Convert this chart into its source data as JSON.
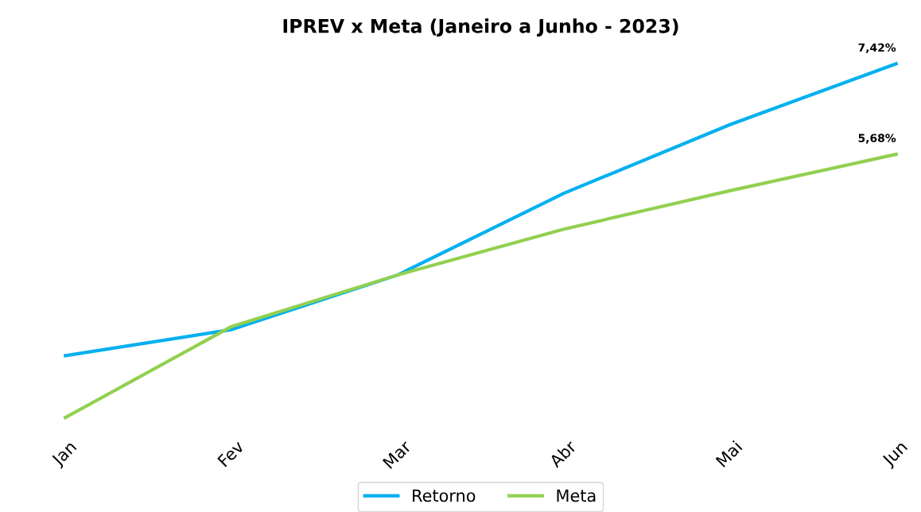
{
  "chart_data": {
    "type": "line",
    "title": "IPREV x Meta (Janeiro a Junho - 2023)",
    "categories": [
      "Jan",
      "Fev",
      "Mar",
      "Abr",
      "Mai",
      "Jun"
    ],
    "series": [
      {
        "name": "Retorno",
        "color": "#00b0f0",
        "values": [
          1.81,
          2.31,
          3.36,
          4.93,
          6.25,
          7.42
        ],
        "value_labels": [
          null,
          null,
          null,
          null,
          null,
          "7,42%"
        ]
      },
      {
        "name": "Meta",
        "color": "#92d050",
        "values": [
          0.62,
          2.37,
          3.36,
          4.24,
          4.98,
          5.68
        ],
        "value_labels": [
          null,
          null,
          null,
          null,
          null,
          "5,68%"
        ]
      }
    ],
    "tick_labels": "x",
    "grid": false,
    "legend": "bottom",
    "marker": "none",
    "line_style": "solid"
  }
}
